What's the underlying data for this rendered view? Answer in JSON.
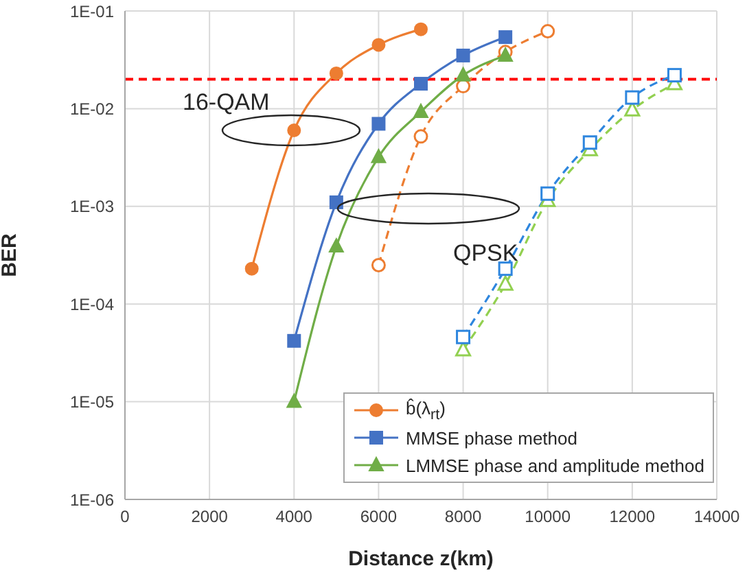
{
  "chart_data": {
    "type": "line",
    "xlabel": "Distance z(km)",
    "ylabel": "BER",
    "log": "y",
    "grid": true,
    "legend": "bottom right",
    "xlim": [
      0,
      14000
    ],
    "xticks": [
      0,
      2000,
      4000,
      6000,
      8000,
      10000,
      12000,
      14000
    ],
    "ylim": [
      1e-06,
      0.1
    ],
    "yticks": [
      {
        "value": 1e-06,
        "label": "1E-06"
      },
      {
        "value": 1e-05,
        "label": "1E-05"
      },
      {
        "value": 0.0001,
        "label": "1E-04"
      },
      {
        "value": 0.001,
        "label": "1E-03"
      },
      {
        "value": 0.01,
        "label": "1E-02"
      },
      {
        "value": 0.1,
        "label": "1E-01"
      }
    ],
    "annotations": [
      "16-QAM",
      "QPSK"
    ],
    "ref_lines": [
      {
        "axis": "y",
        "value": 0.02,
        "color": "#ff0000",
        "line_style": "dashed"
      }
    ],
    "series": [
      {
        "name": "b̂(λ$_{rt}$)",
        "color": "#ed7d31",
        "marker": "circle",
        "line_style": "solid",
        "x": [
          3000,
          4000,
          5000,
          6000,
          7000
        ],
        "values": [
          0.00023,
          0.006,
          0.023,
          0.045,
          0.065
        ]
      },
      {
        "name": "MMSE phase method",
        "color": "#4472c4",
        "marker": "square",
        "line_style": "solid",
        "x": [
          4000,
          5000,
          6000,
          7000,
          8000,
          9000
        ],
        "values": [
          4.2e-05,
          0.0011,
          0.007,
          0.018,
          0.035,
          0.054
        ]
      },
      {
        "name": "LMMSE phase and amplitude method",
        "color": "#70ad47",
        "marker": "triangle",
        "line_style": "solid",
        "x": [
          4000,
          5000,
          6000,
          7000,
          8000,
          9000
        ],
        "values": [
          1e-05,
          0.00039,
          0.0032,
          0.0093,
          0.022,
          0.035
        ]
      },
      {
        "color": "#ed7d31",
        "marker": "circle",
        "line_style": "dashed",
        "x": [
          6000,
          7000,
          8000,
          9000,
          10000
        ],
        "values": [
          0.00025,
          0.0052,
          0.017,
          0.038,
          0.062
        ]
      },
      {
        "color": "#2e86de",
        "marker": "square",
        "line_style": "dashed",
        "x": [
          8000,
          9000,
          10000,
          11000,
          12000,
          13000
        ],
        "values": [
          4.6e-05,
          0.00023,
          0.00135,
          0.0045,
          0.013,
          0.022
        ]
      },
      {
        "color": "#92d050",
        "marker": "triangle",
        "line_style": "dashed",
        "x": [
          8000,
          9000,
          10000,
          11000,
          12000,
          13000
        ],
        "values": [
          3.4e-05,
          0.00016,
          0.00115,
          0.0038,
          0.0097,
          0.018
        ]
      }
    ]
  }
}
